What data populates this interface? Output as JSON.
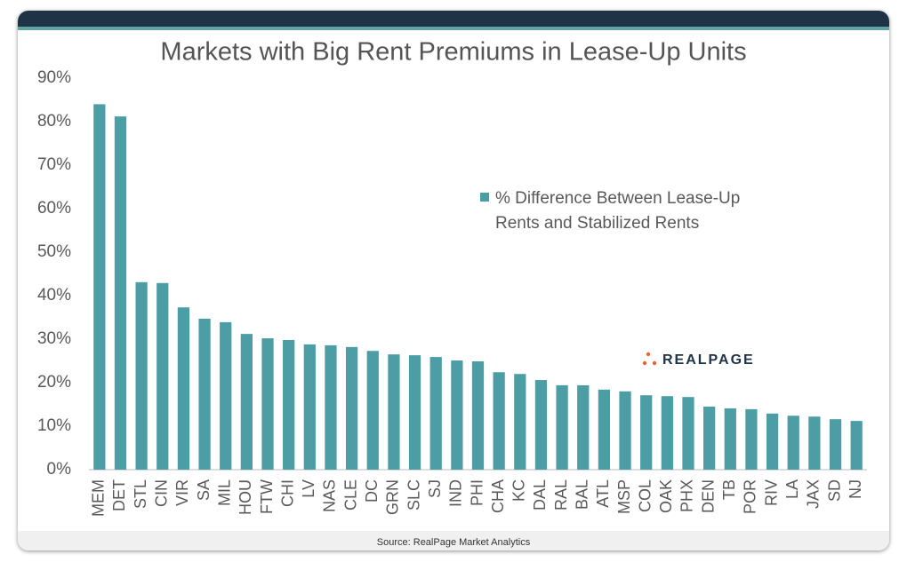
{
  "chart_data": {
    "type": "bar",
    "title": "Markets with Big Rent Premiums in Lease-Up Units",
    "categories": [
      "MEM",
      "DET",
      "STL",
      "CIN",
      "VIR",
      "SA",
      "MIL",
      "HOU",
      "FTW",
      "CHI",
      "LV",
      "NAS",
      "CLE",
      "DC",
      "GRN",
      "SLC",
      "SJ",
      "IND",
      "PHI",
      "CHA",
      "KC",
      "DAL",
      "RAL",
      "BAL",
      "ATL",
      "MSP",
      "COL",
      "OAK",
      "PHX",
      "DEN",
      "TB",
      "POR",
      "RIV",
      "LA",
      "JAX",
      "SD",
      "NJ"
    ],
    "series": [
      {
        "name": "% Difference Between Lease-Up Rents and Stabilized Rents",
        "color": "#4c9ea4",
        "values": [
          84.0,
          81.2,
          43.1,
          42.9,
          37.3,
          34.7,
          33.9,
          31.2,
          30.2,
          29.8,
          28.8,
          28.6,
          28.2,
          27.3,
          26.5,
          26.3,
          25.9,
          25.1,
          24.9,
          22.4,
          22.0,
          20.6,
          19.4,
          19.4,
          18.4,
          18.0,
          17.1,
          16.9,
          16.7,
          14.5,
          14.1,
          13.9,
          12.9,
          12.4,
          12.2,
          11.6,
          11.2
        ]
      }
    ],
    "ylim": [
      0,
      90
    ],
    "yticks": [
      {
        "value": 0,
        "label": "0%"
      },
      {
        "value": 10,
        "label": "10%"
      },
      {
        "value": 20,
        "label": "20%"
      },
      {
        "value": 30,
        "label": "30%"
      },
      {
        "value": 40,
        "label": "40%"
      },
      {
        "value": 50,
        "label": "50%"
      },
      {
        "value": 60,
        "label": "60%"
      },
      {
        "value": 70,
        "label": "70%"
      },
      {
        "value": 80,
        "label": "80%"
      },
      {
        "value": 90,
        "label": "90%"
      }
    ],
    "grid": false,
    "logo": "REALPAGE",
    "source": "Source: RealPage Market Analytics"
  }
}
